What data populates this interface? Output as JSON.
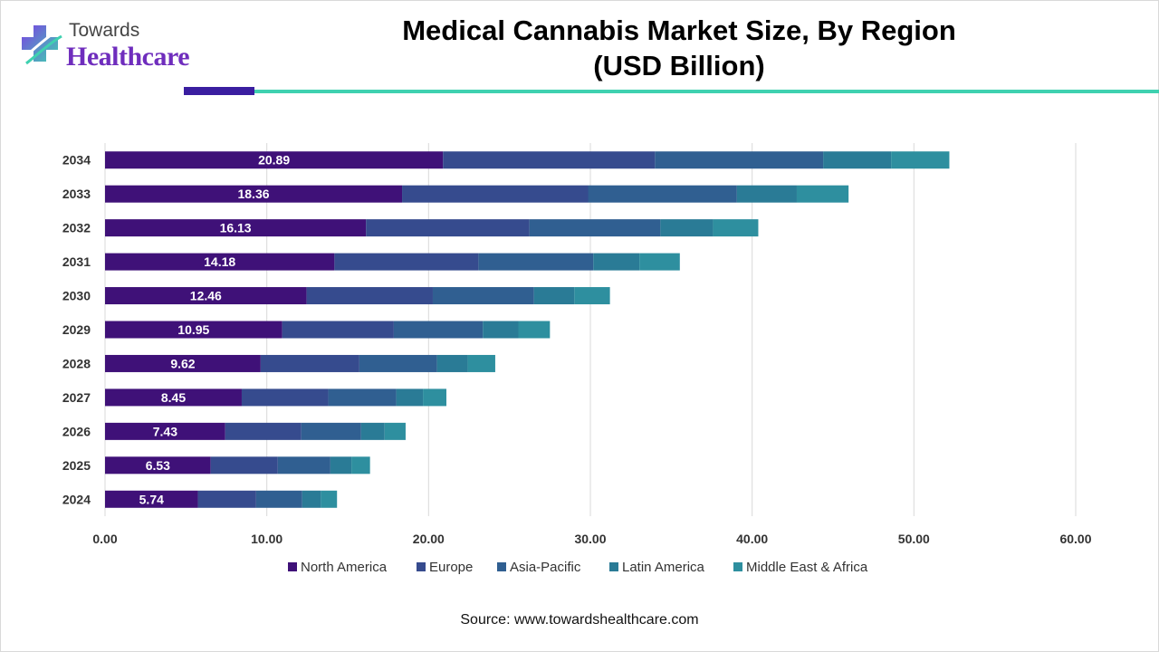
{
  "logo": {
    "top": "Towards",
    "main": "Healthcare"
  },
  "title": {
    "line1": "Medical Cannabis Market Size, By Region",
    "line2": "(USD Billion)"
  },
  "source": "Source: www.towardshealthcare.com",
  "colors": {
    "north_america": "#3f1178",
    "europe": "#364b8e",
    "asia_pacific": "#305f91",
    "latin_america": "#2a7b96",
    "middle_east_africa": "#2e8f9f",
    "grid": "#d9d9d9",
    "axis_text": "#333333",
    "brand_purple": "#6f2dbd",
    "brand_teal": "#3fd1b0"
  },
  "chart_data": {
    "type": "bar",
    "orientation": "horizontal",
    "stacked": true,
    "categories": [
      "2034",
      "2033",
      "2032",
      "2031",
      "2030",
      "2029",
      "2028",
      "2027",
      "2026",
      "2025",
      "2024"
    ],
    "series": [
      {
        "name": "North America",
        "values": [
          20.89,
          18.36,
          16.13,
          14.18,
          12.46,
          10.95,
          9.62,
          8.45,
          7.43,
          6.53,
          5.74
        ]
      },
      {
        "name": "Europe",
        "values": [
          13.1,
          11.5,
          10.1,
          8.9,
          7.8,
          6.9,
          6.1,
          5.35,
          4.7,
          4.15,
          3.6
        ]
      },
      {
        "name": "Asia-Pacific",
        "values": [
          10.4,
          9.2,
          8.1,
          7.1,
          6.25,
          5.5,
          4.8,
          4.2,
          3.7,
          3.25,
          2.85
        ]
      },
      {
        "name": "Latin America",
        "values": [
          4.2,
          3.7,
          3.25,
          2.85,
          2.5,
          2.2,
          1.9,
          1.65,
          1.45,
          1.3,
          1.15
        ]
      },
      {
        "name": "Middle East & Africa",
        "values": [
          3.6,
          3.2,
          2.8,
          2.5,
          2.2,
          1.95,
          1.7,
          1.45,
          1.3,
          1.15,
          1.0
        ]
      }
    ],
    "data_labels_series": "North America",
    "xlim": [
      0,
      60
    ],
    "xticks": [
      "0.00",
      "10.00",
      "20.00",
      "30.00",
      "40.00",
      "50.00",
      "60.00"
    ],
    "grid": true,
    "legend": "bottom"
  }
}
